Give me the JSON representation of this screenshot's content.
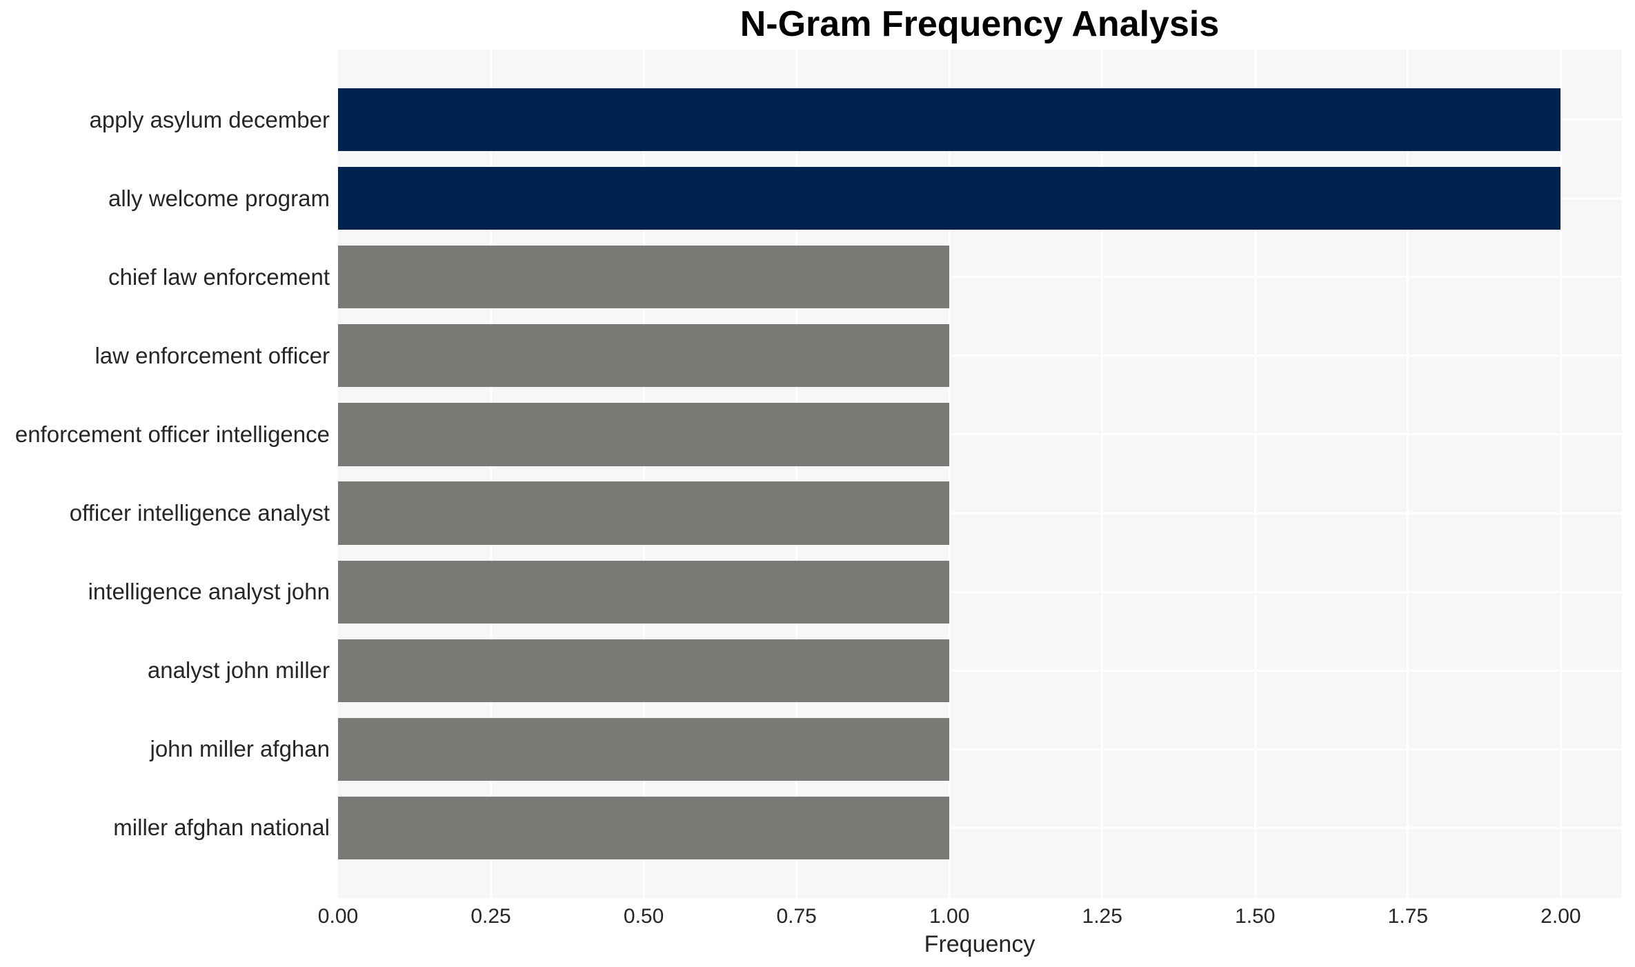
{
  "chart_data": {
    "type": "bar",
    "orientation": "horizontal",
    "title": "N-Gram Frequency Analysis",
    "xlabel": "Frequency",
    "ylabel": "",
    "categories": [
      "apply asylum december",
      "ally welcome program",
      "chief law enforcement",
      "law enforcement officer",
      "enforcement officer intelligence",
      "officer intelligence analyst",
      "intelligence analyst john",
      "analyst john miller",
      "john miller afghan",
      "miller afghan national"
    ],
    "values": [
      2,
      2,
      1,
      1,
      1,
      1,
      1,
      1,
      1,
      1
    ],
    "bar_colors": [
      "#01224e",
      "#01224e",
      "#7a7975",
      "#7a7975",
      "#7a7975",
      "#7a7975",
      "#7a7975",
      "#7a7975",
      "#7a7975",
      "#7a7975"
    ],
    "xlim": [
      0,
      2.1
    ],
    "xticks": {
      "values": [
        0,
        0.25,
        0.5,
        0.75,
        1.0,
        1.25,
        1.5,
        1.75,
        2.0
      ],
      "labels": [
        "0.00",
        "0.25",
        "0.50",
        "0.75",
        "1.00",
        "1.25",
        "1.50",
        "1.75",
        "2.00"
      ]
    },
    "grid": "on",
    "legend": "none",
    "colors": {
      "bar_highlight": "#01224e",
      "bar_default": "#7a7975",
      "plot_background": "#f7f7f7",
      "gridline": "#ffffff",
      "tick_text": "#262626",
      "title_text": "#000000"
    }
  }
}
